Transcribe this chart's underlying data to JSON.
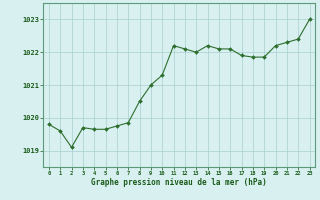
{
  "hours": [
    0,
    1,
    2,
    3,
    4,
    5,
    6,
    7,
    8,
    9,
    10,
    11,
    12,
    13,
    14,
    15,
    16,
    17,
    18,
    19,
    20,
    21,
    22,
    23
  ],
  "pressure": [
    1019.8,
    1019.6,
    1019.1,
    1019.7,
    1019.65,
    1019.65,
    1019.75,
    1019.85,
    1020.5,
    1021.0,
    1021.3,
    1022.2,
    1022.1,
    1022.0,
    1022.2,
    1022.1,
    1022.1,
    1021.9,
    1021.85,
    1021.85,
    1022.2,
    1022.3,
    1022.4,
    1023.0
  ],
  "line_color": "#2d6e2d",
  "marker_color": "#2d6e2d",
  "bg_color": "#d8f0f0",
  "grid_color": "#a8cece",
  "xlabel": "Graphe pression niveau de la mer (hPa)",
  "xlabel_color": "#1a5c1a",
  "tick_color": "#1a5c1a",
  "ylim": [
    1018.5,
    1023.5
  ],
  "yticks": [
    1019,
    1020,
    1021,
    1022,
    1023
  ],
  "xticks": [
    0,
    1,
    2,
    3,
    4,
    5,
    6,
    7,
    8,
    9,
    10,
    11,
    12,
    13,
    14,
    15,
    16,
    17,
    18,
    19,
    20,
    21,
    22,
    23
  ],
  "spine_color": "#5a9a7a"
}
